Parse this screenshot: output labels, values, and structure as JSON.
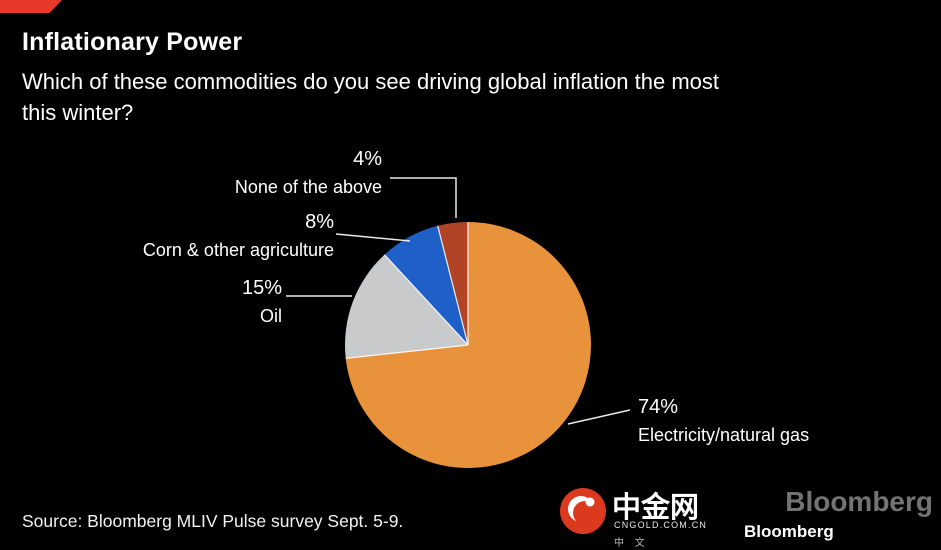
{
  "header": {
    "title": "Inflationary Power",
    "subtitle_lines": [
      "Which of these commodities do you see driving global inflation the most",
      "this winter?"
    ]
  },
  "chart_data": {
    "type": "pie",
    "title": "Inflationary Power",
    "question": "Which of these commodities do you see driving global inflation the most this winter?",
    "unit": "%",
    "direction": "clockwise",
    "start_angle": "12 o'clock",
    "legend_position": "callout-labels",
    "slices": [
      {
        "label": "Electricity/natural gas",
        "value": 74,
        "pct_label": "74%",
        "color": "#E8923B"
      },
      {
        "label": "Oil",
        "value": 15,
        "pct_label": "15%",
        "color": "#C8CACC"
      },
      {
        "label": "Corn & other agriculture",
        "value": 8,
        "pct_label": "8%",
        "color": "#1E60C8"
      },
      {
        "label": "None of the above",
        "value": 4,
        "pct_label": "4%",
        "color": "#B14426"
      }
    ]
  },
  "source": "Source: Bloomberg MLIV Pulse survey Sept. 5-9.",
  "watermark": {
    "site_name": "中金网",
    "site_domain": "CNGOLD.COM.CN",
    "tagline": "中 文",
    "brand": "Bloomberg",
    "logo_color": "#DC3A1E"
  },
  "colors": {
    "background": "#000000",
    "text": "#FFFFFF",
    "leader_line": "#E8E8E8",
    "corner_ribbon": "#E6392C"
  }
}
